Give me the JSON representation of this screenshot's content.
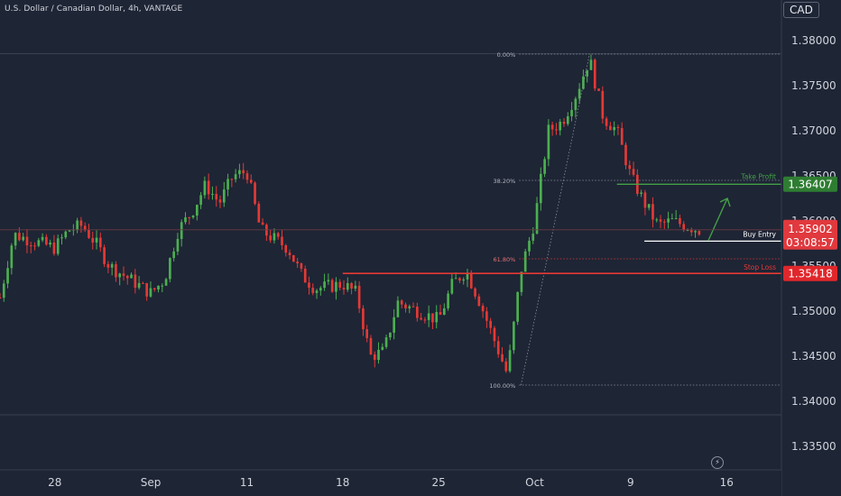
{
  "header": {
    "symbol_title": "U.S. Dollar / Canadian Dollar, 4h, VANTAGE",
    "currency_label": "CAD"
  },
  "colors": {
    "background": "#1e2535",
    "bull": "#4caf50",
    "bear": "#e53935",
    "take_profit": "#43a047",
    "stop_loss": "#e53935",
    "buy_entry": "#ffffff",
    "fib": "#8a90a0"
  },
  "icons": [
    "flash-icon"
  ],
  "chart_data": {
    "type": "candlestick",
    "title": "U.S. Dollar / Canadian Dollar, 4h, VANTAGE",
    "y_ticks": [
      "1.38000",
      "1.37500",
      "1.37000",
      "1.36500",
      "1.36000",
      "1.35500",
      "1.35000",
      "1.34500",
      "1.34000",
      "1.33500"
    ],
    "y_tick_values": [
      1.38,
      1.375,
      1.37,
      1.365,
      1.36,
      1.355,
      1.35,
      1.345,
      1.34,
      1.335
    ],
    "x_ticks": [
      "28",
      "Sep",
      "11",
      "18",
      "25",
      "Oct",
      "9",
      "16"
    ],
    "x_tick_dates": [
      "2023-08-28",
      "2023-09-04",
      "2023-09-11",
      "2023-09-18",
      "2023-09-25",
      "2023-10-02",
      "2023-10-09",
      "2023-10-16"
    ],
    "ylim": [
      1.3325,
      1.3825
    ],
    "xlim": [
      "2023-08-24",
      "2023-10-20"
    ],
    "grid": false,
    "price_path": [
      [
        "2023-08-24",
        1.3515
      ],
      [
        "2023-08-25",
        1.3585
      ],
      [
        "2023-08-28",
        1.357
      ],
      [
        "2023-08-29",
        1.359
      ],
      [
        "2023-08-30",
        1.3595
      ],
      [
        "2023-08-31",
        1.3575
      ],
      [
        "2023-09-01",
        1.355
      ],
      [
        "2023-09-04",
        1.352
      ],
      [
        "2023-09-05",
        1.3535
      ],
      [
        "2023-09-06",
        1.359
      ],
      [
        "2023-09-07",
        1.361
      ],
      [
        "2023-09-08",
        1.364
      ],
      [
        "2023-09-09",
        1.362
      ],
      [
        "2023-09-10",
        1.365
      ],
      [
        "2023-09-11",
        1.3655
      ],
      [
        "2023-09-12",
        1.359
      ],
      [
        "2023-09-13",
        1.358
      ],
      [
        "2023-09-14",
        1.357
      ],
      [
        "2023-09-15",
        1.354
      ],
      [
        "2023-09-16",
        1.3525
      ],
      [
        "2023-09-18",
        1.353
      ],
      [
        "2023-09-19",
        1.352
      ],
      [
        "2023-09-20",
        1.345
      ],
      [
        "2023-09-21",
        1.3455
      ],
      [
        "2023-09-22",
        1.351
      ],
      [
        "2023-09-25",
        1.349
      ],
      [
        "2023-09-26",
        1.353
      ],
      [
        "2023-09-27",
        1.3545
      ],
      [
        "2023-09-28",
        1.351
      ],
      [
        "2023-09-29",
        1.347
      ],
      [
        "2023-09-30",
        1.343
      ],
      [
        "2023-10-01",
        1.3545
      ],
      [
        "2023-10-02",
        1.36
      ],
      [
        "2023-10-03",
        1.37
      ],
      [
        "2023-10-04",
        1.371
      ],
      [
        "2023-10-05",
        1.374
      ],
      [
        "2023-10-06",
        1.378
      ],
      [
        "2023-10-07",
        1.3715
      ],
      [
        "2023-10-08",
        1.37
      ],
      [
        "2023-10-09",
        1.365
      ],
      [
        "2023-10-10",
        1.362
      ],
      [
        "2023-10-11",
        1.3595
      ],
      [
        "2023-10-12",
        1.36
      ],
      [
        "2023-10-13",
        1.3595
      ],
      [
        "2023-10-14",
        1.359
      ]
    ],
    "candle_count": 182,
    "swing_low": {
      "date": "2023-10-01",
      "price": 1.3418
    },
    "swing_high": {
      "date": "2023-10-06",
      "price": 1.3785
    },
    "fibonacci": [
      {
        "label": "0.00%",
        "price": 1.3785
      },
      {
        "label": "38.20%",
        "price": 1.3645
      },
      {
        "label": "61.80%",
        "price": 1.3558
      },
      {
        "label": "100.00%",
        "price": 1.3418
      }
    ],
    "levels": [
      {
        "name": "take_profit",
        "label": "Take Profit",
        "price": 1.36407,
        "price_label": "1.36407",
        "from": "2023-10-08"
      },
      {
        "name": "buy_entry",
        "label": "Buy Entry",
        "price": 1.35776,
        "from": "2023-10-10"
      },
      {
        "name": "stop_loss",
        "label": "Stop Loss",
        "price": 1.35418,
        "price_label": "1.35418",
        "from": "2023-09-18"
      }
    ],
    "current_price": {
      "price": 1.35902,
      "price_label": "1.35902",
      "countdown": "03:08:57"
    },
    "arrow": {
      "from": [
        "2023-10-14",
        1.3578
      ],
      "to": [
        "2023-10-15",
        1.3625
      ]
    }
  }
}
